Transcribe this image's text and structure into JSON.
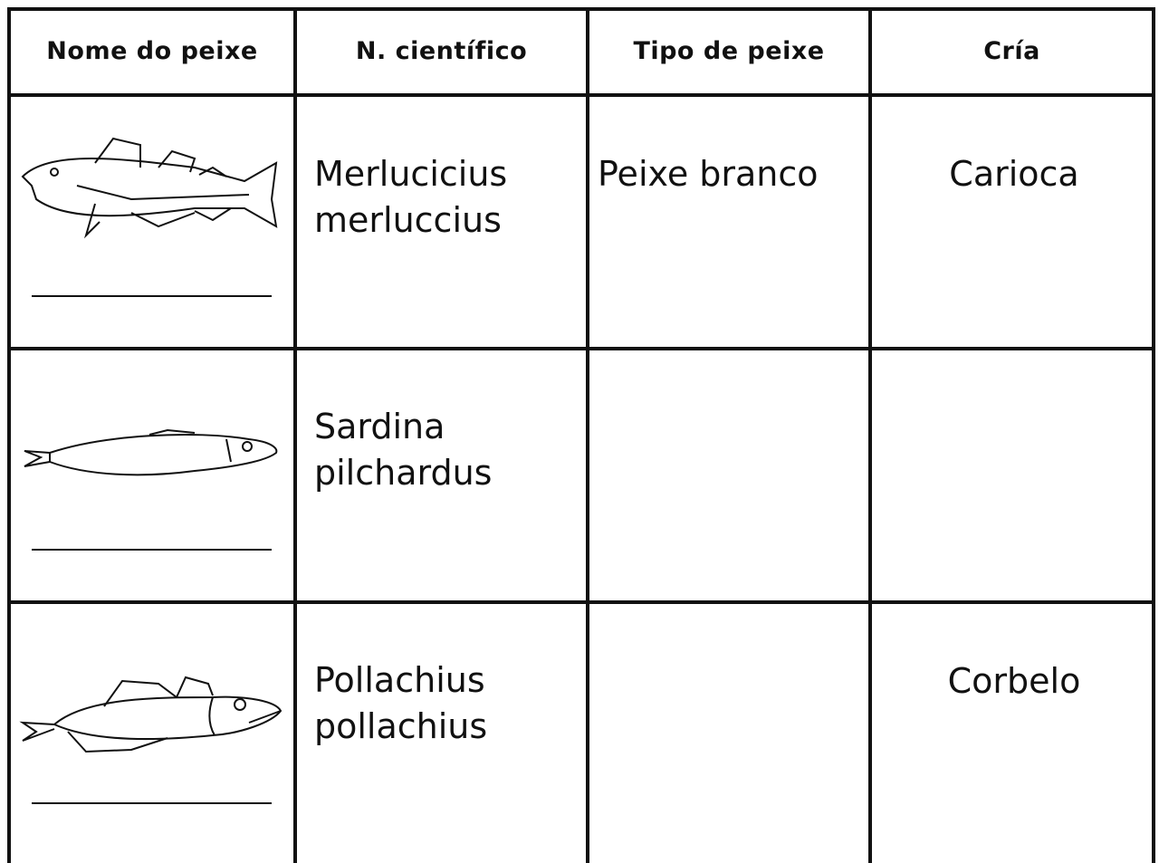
{
  "table": {
    "header": [
      "Nome do peixe",
      "N. científico",
      "Tipo de peixe",
      "Cría"
    ],
    "rows": [
      {
        "scientific_name": "Merlucicius merluccius",
        "type": "Peixe branco",
        "cria": "Carioca"
      },
      {
        "scientific_name": "Sardina pilchardus"
      },
      {
        "scientific_name": "Pollachius pollachius",
        "cria": "Corbelo"
      }
    ]
  }
}
